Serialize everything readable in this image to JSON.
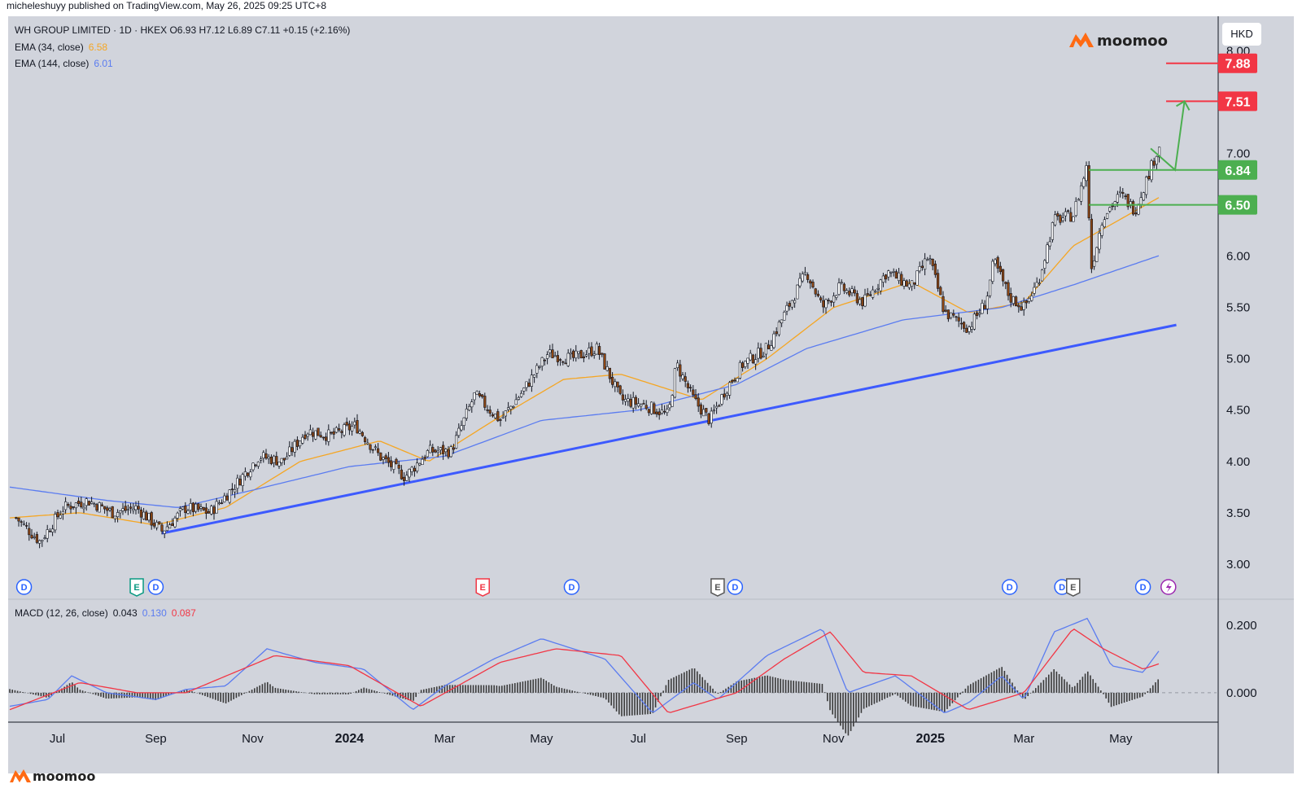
{
  "header": {
    "published": "micheleshuyy published on TradingView.com, May 26, 2025 09:25 UTC+8",
    "symbol_line": "WH GROUP LIMITED · 1D · HKEX  O6.93  H7.12  L6.89  C7.11  +0.15 (+2.16%)",
    "ema34_label": "EMA (34, close)",
    "ema34_value": "6.58",
    "ema144_label": "EMA (144, close)",
    "ema144_value": "6.01",
    "macd_label": "MACD (12, 26, close)",
    "macd_hist": "0.043",
    "macd_line": "0.130",
    "macd_signal": "0.087",
    "currency": "HKD",
    "brand": "moomoo",
    "footer_brand": "moomoo"
  },
  "colors": {
    "ema34": "#f5a623",
    "ema144": "#5b7cf0",
    "trendline": "#3d5afe",
    "green_level": "#4caf50",
    "red_level": "#f23645",
    "macd_line": "#5b7cf0",
    "macd_signal": "#f23645",
    "candle_up": "#ffffff",
    "candle_down": "#8b4513",
    "background": "#d1d4dc"
  },
  "chart_data": {
    "type": "candlestick",
    "title": "WH GROUP LIMITED · 1D · HKEX",
    "ylim": [
      2.8,
      8.1
    ],
    "y_ticks": [
      "3.00",
      "3.50",
      "4.00",
      "4.50",
      "5.00",
      "5.50",
      "6.00",
      "6.50",
      "7.00",
      "7.50",
      "8.00"
    ],
    "x_labels": [
      "Jul",
      "Sep",
      "Nov",
      "2024",
      "Mar",
      "May",
      "Jul",
      "Sep",
      "Nov",
      "2025",
      "Mar",
      "May"
    ],
    "price_path": [
      [
        "2023-06-05",
        3.45
      ],
      [
        "2023-06-20",
        3.22
      ],
      [
        "2023-07-05",
        3.55
      ],
      [
        "2023-07-20",
        3.62
      ],
      [
        "2023-08-05",
        3.5
      ],
      [
        "2023-08-20",
        3.55
      ],
      [
        "2023-09-05",
        3.32
      ],
      [
        "2023-09-20",
        3.55
      ],
      [
        "2023-10-05",
        3.5
      ],
      [
        "2023-10-20",
        3.75
      ],
      [
        "2023-11-05",
        4.05
      ],
      [
        "2023-11-20",
        4.0
      ],
      [
        "2023-12-05",
        4.3
      ],
      [
        "2023-12-20",
        4.25
      ],
      [
        "2024-01-05",
        4.35
      ],
      [
        "2024-01-20",
        4.05
      ],
      [
        "2024-02-05",
        3.85
      ],
      [
        "2024-02-20",
        4.1
      ],
      [
        "2024-03-05",
        4.1
      ],
      [
        "2024-03-20",
        4.65
      ],
      [
        "2024-04-05",
        4.4
      ],
      [
        "2024-04-20",
        4.7
      ],
      [
        "2024-05-05",
        5.05
      ],
      [
        "2024-05-20",
        5.0
      ],
      [
        "2024-06-05",
        5.1
      ],
      [
        "2024-06-20",
        4.6
      ],
      [
        "2024-07-05",
        4.55
      ],
      [
        "2024-07-20",
        4.45
      ],
      [
        "2024-07-25",
        4.95
      ],
      [
        "2024-08-05",
        4.6
      ],
      [
        "2024-08-15",
        4.4
      ],
      [
        "2024-08-25",
        4.7
      ],
      [
        "2024-09-05",
        4.95
      ],
      [
        "2024-09-20",
        5.1
      ],
      [
        "2024-10-05",
        5.55
      ],
      [
        "2024-10-15",
        5.85
      ],
      [
        "2024-10-25",
        5.5
      ],
      [
        "2024-11-05",
        5.7
      ],
      [
        "2024-11-20",
        5.55
      ],
      [
        "2024-12-05",
        5.85
      ],
      [
        "2024-12-20",
        5.7
      ],
      [
        "2024-12-31",
        6.0
      ],
      [
        "2025-01-10",
        5.45
      ],
      [
        "2025-01-25",
        5.3
      ],
      [
        "2025-02-05",
        5.55
      ],
      [
        "2025-02-10",
        5.95
      ],
      [
        "2025-02-20",
        5.6
      ],
      [
        "2025-03-01",
        5.5
      ],
      [
        "2025-03-10",
        5.75
      ],
      [
        "2025-03-20",
        6.35
      ],
      [
        "2025-04-01",
        6.4
      ],
      [
        "2025-04-10",
        6.9
      ],
      [
        "2025-04-12",
        5.85
      ],
      [
        "2025-04-20",
        6.4
      ],
      [
        "2025-05-01",
        6.6
      ],
      [
        "2025-05-10",
        6.45
      ],
      [
        "2025-05-26",
        7.11
      ]
    ],
    "series": [
      {
        "name": "EMA (34, close)",
        "values": [
          [
            "2023-06-01",
            3.45
          ],
          [
            "2023-07-15",
            3.5
          ],
          [
            "2023-09-01",
            3.38
          ],
          [
            "2023-10-15",
            3.55
          ],
          [
            "2023-12-01",
            4.0
          ],
          [
            "2024-01-20",
            4.2
          ],
          [
            "2024-02-20",
            4.0
          ],
          [
            "2024-04-01",
            4.4
          ],
          [
            "2024-05-15",
            4.8
          ],
          [
            "2024-06-20",
            4.85
          ],
          [
            "2024-08-10",
            4.6
          ],
          [
            "2024-09-20",
            5.0
          ],
          [
            "2024-11-01",
            5.5
          ],
          [
            "2024-12-20",
            5.75
          ],
          [
            "2025-01-25",
            5.45
          ],
          [
            "2025-03-01",
            5.55
          ],
          [
            "2025-04-01",
            6.1
          ],
          [
            "2025-05-26",
            6.58
          ]
        ]
      },
      {
        "name": "EMA (144, close)",
        "values": [
          [
            "2023-06-01",
            3.75
          ],
          [
            "2023-08-01",
            3.62
          ],
          [
            "2023-09-15",
            3.55
          ],
          [
            "2023-11-01",
            3.72
          ],
          [
            "2024-01-01",
            3.95
          ],
          [
            "2024-03-01",
            4.05
          ],
          [
            "2024-05-01",
            4.4
          ],
          [
            "2024-07-01",
            4.5
          ],
          [
            "2024-09-01",
            4.75
          ],
          [
            "2024-10-15",
            5.1
          ],
          [
            "2024-12-15",
            5.38
          ],
          [
            "2025-02-15",
            5.5
          ],
          [
            "2025-04-01",
            5.72
          ],
          [
            "2025-05-26",
            6.01
          ]
        ]
      }
    ],
    "trendline": [
      [
        "2023-09-05",
        3.3
      ],
      [
        "2025-06-05",
        5.33
      ]
    ],
    "levels": [
      {
        "value": 7.88,
        "label": "7.88",
        "color": "red"
      },
      {
        "value": 7.51,
        "label": "7.51",
        "color": "red"
      },
      {
        "value": 6.84,
        "label": "6.84",
        "color": "green"
      },
      {
        "value": 6.5,
        "label": "6.50",
        "color": "green"
      }
    ],
    "projection": [
      [
        "2025-05-26",
        6.84
      ],
      [
        "2025-06-05",
        7.51
      ]
    ],
    "events": [
      {
        "date": "2023-06-10",
        "type": "D"
      },
      {
        "date": "2023-08-20",
        "type": "E"
      },
      {
        "date": "2023-09-01",
        "type": "D"
      },
      {
        "date": "2024-03-25",
        "type": "E"
      },
      {
        "date": "2024-05-20",
        "type": "D"
      },
      {
        "date": "2024-08-20",
        "type": "E"
      },
      {
        "date": "2024-08-31",
        "type": "D"
      },
      {
        "date": "2025-02-20",
        "type": "D"
      },
      {
        "date": "2025-03-25",
        "type": "D"
      },
      {
        "date": "2025-04-01",
        "type": "E"
      },
      {
        "date": "2025-05-15",
        "type": "D"
      },
      {
        "date": "2025-05-31",
        "type": "S"
      }
    ],
    "macd": {
      "ylim": [
        -0.07,
        0.25
      ],
      "y_ticks": [
        "0.200",
        "0.000"
      ],
      "macd_line": [
        [
          "2023-06-01",
          -0.04
        ],
        [
          "2023-06-25",
          -0.02
        ],
        [
          "2023-07-10",
          0.05
        ],
        [
          "2023-08-01",
          0.0
        ],
        [
          "2023-09-01",
          -0.02
        ],
        [
          "2023-09-20",
          0.01
        ],
        [
          "2023-10-15",
          0.02
        ],
        [
          "2023-11-10",
          0.13
        ],
        [
          "2023-12-10",
          0.09
        ],
        [
          "2024-01-10",
          0.07
        ],
        [
          "2024-02-10",
          -0.05
        ],
        [
          "2024-03-01",
          0.02
        ],
        [
          "2024-04-01",
          0.1
        ],
        [
          "2024-05-01",
          0.16
        ],
        [
          "2024-06-10",
          0.1
        ],
        [
          "2024-07-10",
          -0.06
        ],
        [
          "2024-08-05",
          0.03
        ],
        [
          "2024-08-20",
          -0.02
        ],
        [
          "2024-09-20",
          0.11
        ],
        [
          "2024-10-25",
          0.19
        ],
        [
          "2024-11-10",
          0.0
        ],
        [
          "2024-12-10",
          0.05
        ],
        [
          "2025-01-10",
          -0.06
        ],
        [
          "2025-01-25",
          -0.03
        ],
        [
          "2025-02-15",
          0.05
        ],
        [
          "2025-03-01",
          -0.02
        ],
        [
          "2025-03-20",
          0.18
        ],
        [
          "2025-04-10",
          0.22
        ],
        [
          "2025-04-25",
          0.08
        ],
        [
          "2025-05-15",
          0.06
        ],
        [
          "2025-05-26",
          0.13
        ]
      ],
      "signal_line": [
        [
          "2023-06-01",
          -0.05
        ],
        [
          "2023-07-15",
          0.03
        ],
        [
          "2023-08-20",
          0.0
        ],
        [
          "2023-09-20",
          0.0
        ],
        [
          "2023-11-15",
          0.11
        ],
        [
          "2024-01-01",
          0.08
        ],
        [
          "2024-02-15",
          -0.04
        ],
        [
          "2024-04-05",
          0.09
        ],
        [
          "2024-05-10",
          0.13
        ],
        [
          "2024-06-20",
          0.11
        ],
        [
          "2024-07-20",
          -0.06
        ],
        [
          "2024-09-01",
          0.0
        ],
        [
          "2024-10-01",
          0.1
        ],
        [
          "2024-10-30",
          0.18
        ],
        [
          "2024-11-20",
          0.06
        ],
        [
          "2024-12-20",
          0.05
        ],
        [
          "2025-01-25",
          -0.05
        ],
        [
          "2025-03-01",
          0.0
        ],
        [
          "2025-04-01",
          0.19
        ],
        [
          "2025-04-20",
          0.13
        ],
        [
          "2025-05-15",
          0.07
        ],
        [
          "2025-05-26",
          0.087
        ]
      ]
    },
    "grid": false
  }
}
